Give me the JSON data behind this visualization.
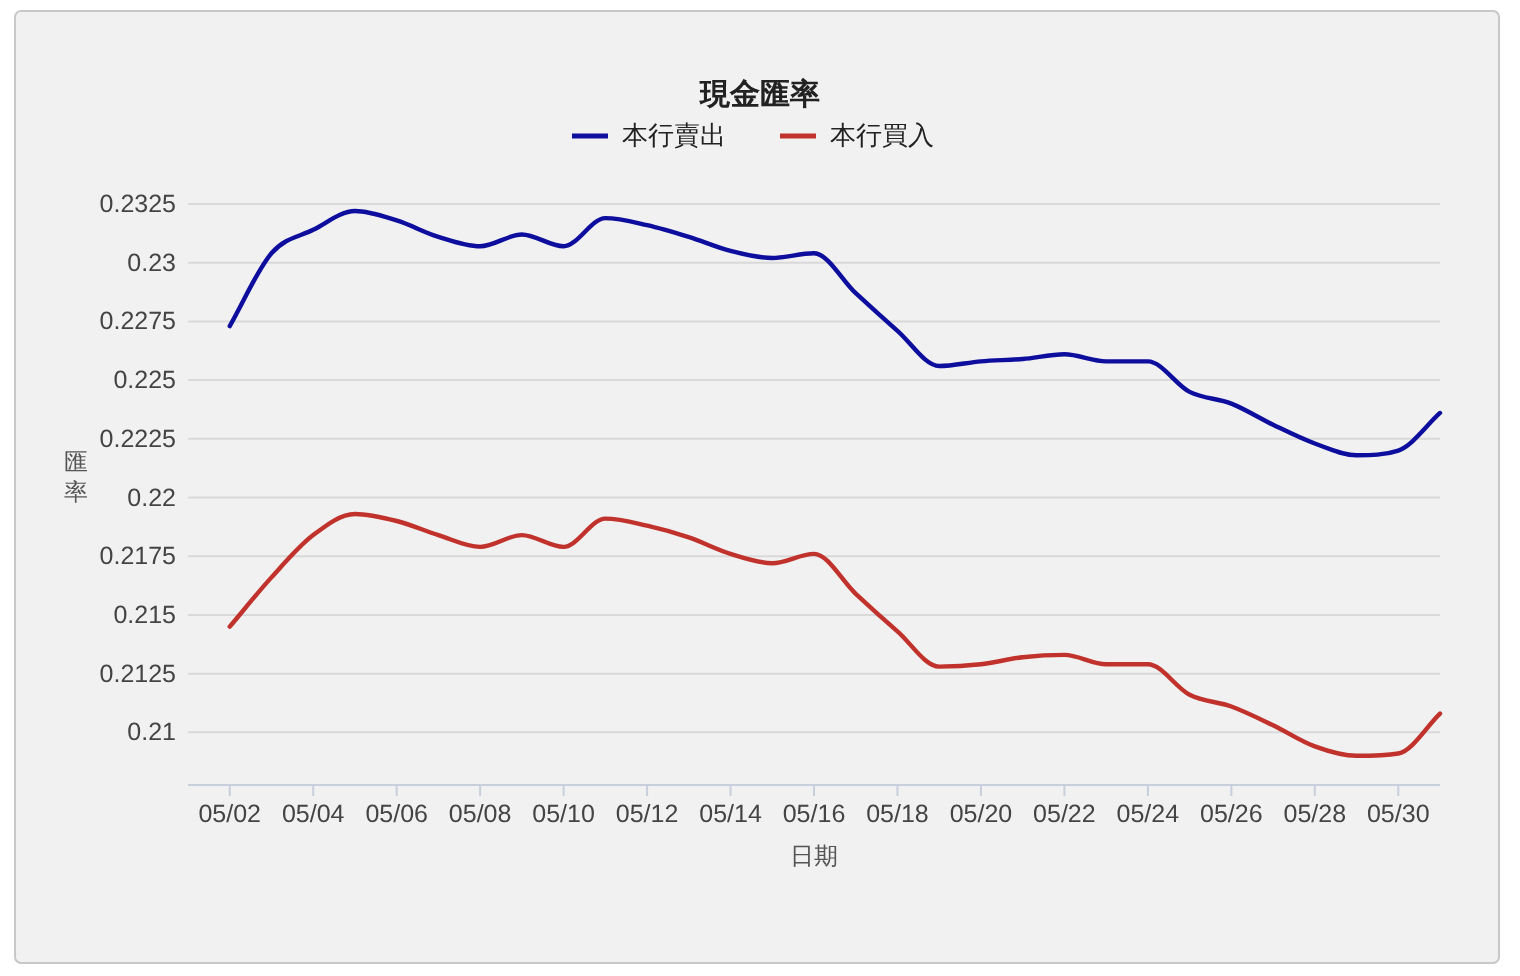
{
  "chart_data": {
    "type": "line",
    "title": "現金匯率",
    "xlabel": "日期",
    "ylabel": "匯率",
    "x": [
      "--05-02",
      "--05-03",
      "--05-04",
      "--05-05",
      "--05-06",
      "--05-07",
      "--05-08",
      "--05-09",
      "--05-10",
      "--05-11",
      "--05-12",
      "--05-13",
      "--05-14",
      "--05-15",
      "--05-16",
      "--05-17",
      "--05-18",
      "--05-19",
      "--05-20",
      "--05-21",
      "--05-22",
      "--05-23",
      "--05-24",
      "--05-25",
      "--05-26",
      "--05-27",
      "--05-28",
      "--05-29",
      "--05-30",
      "--05-31"
    ],
    "series": [
      {
        "name": "本行賣出",
        "color": "#0d0d9e",
        "values": [
          0.2273,
          0.2304,
          0.2314,
          0.2322,
          0.2318,
          0.2311,
          0.2307,
          0.2312,
          0.2307,
          0.2319,
          0.2316,
          0.2311,
          0.2305,
          0.2302,
          0.2304,
          0.2287,
          0.2271,
          0.2256,
          0.2258,
          0.2259,
          0.2261,
          0.2258,
          0.2258,
          0.2245,
          0.224,
          0.2231,
          0.2223,
          0.2218,
          0.222,
          0.2236
        ]
      },
      {
        "name": "本行買入",
        "color": "#c0322b",
        "values": [
          0.2145,
          0.2166,
          0.2184,
          0.2193,
          0.219,
          0.2184,
          0.2179,
          0.2184,
          0.2179,
          0.2191,
          0.2188,
          0.2183,
          0.2176,
          0.2172,
          0.2176,
          0.2159,
          0.2143,
          0.2128,
          0.2129,
          0.2132,
          0.2133,
          0.2129,
          0.2129,
          0.2116,
          0.2111,
          0.2103,
          0.2094,
          0.209,
          0.2091,
          0.2108
        ]
      }
    ],
    "xlim": [
      "--05-01",
      "--05-31"
    ],
    "xticks": [
      {
        "value": "--05-02",
        "label": "05/02"
      },
      {
        "value": "--05-04",
        "label": "05/04"
      },
      {
        "value": "--05-06",
        "label": "05/06"
      },
      {
        "value": "--05-08",
        "label": "05/08"
      },
      {
        "value": "--05-10",
        "label": "05/10"
      },
      {
        "value": "--05-12",
        "label": "05/12"
      },
      {
        "value": "--05-14",
        "label": "05/14"
      },
      {
        "value": "--05-16",
        "label": "05/16"
      },
      {
        "value": "--05-18",
        "label": "05/18"
      },
      {
        "value": "--05-20",
        "label": "05/20"
      },
      {
        "value": "--05-22",
        "label": "05/22"
      },
      {
        "value": "--05-24",
        "label": "05/24"
      },
      {
        "value": "--05-26",
        "label": "05/26"
      },
      {
        "value": "--05-28",
        "label": "05/28"
      },
      {
        "value": "--05-30",
        "label": "05/30"
      }
    ],
    "ylim": [
      0.2078,
      0.2325
    ],
    "yticks": [
      0.21,
      0.2125,
      0.215,
      0.2175,
      0.22,
      0.2225,
      0.225,
      0.2275,
      0.23,
      0.2325
    ],
    "grid": "y",
    "legend": "top",
    "marker": "none",
    "line_style": "solid"
  }
}
